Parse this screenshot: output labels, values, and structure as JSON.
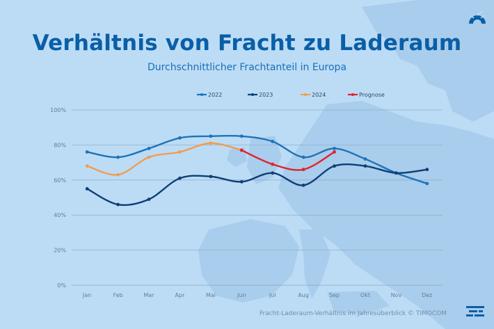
{
  "header": {
    "title": "Verhältnis von Fracht zu Laderaum",
    "subtitle": "Durchschnittlicher Frachtanteil in Europa"
  },
  "footer": {
    "source": "Fracht-Laderaum-Verhältnis im Jahresüberblick © TIMOCOM"
  },
  "logos": {
    "top_right": "gauge-icon",
    "bottom_right": "speed-lines-icon"
  },
  "colors": {
    "background": "#bcdcf6",
    "title": "#0a5fa6",
    "s2022": "#1e73b8",
    "s2023": "#0d3f75",
    "s2024": "#f29c4f",
    "prognose": "#e2222b"
  },
  "chart_data": {
    "type": "line",
    "title": "Verhältnis von Fracht zu Laderaum",
    "subtitle": "Durchschnittlicher Frachtanteil in Europa",
    "xlabel": "",
    "ylabel": "",
    "categories": [
      "Jan",
      "Feb",
      "Mar",
      "Apr",
      "Mai",
      "Jun",
      "Jul",
      "Aug",
      "Sep",
      "Okt",
      "Nov",
      "Dez"
    ],
    "y_ticks": [
      "0%",
      "20%",
      "40%",
      "60%",
      "80%",
      "100%"
    ],
    "ylim": [
      0,
      100
    ],
    "grid": true,
    "legend_position": "top",
    "series": [
      {
        "name": "2022",
        "color": "#1e73b8",
        "values": [
          76,
          73,
          78,
          84,
          85,
          85,
          82,
          73,
          78,
          72,
          64,
          58
        ]
      },
      {
        "name": "2023",
        "color": "#0d3f75",
        "values": [
          55,
          46,
          49,
          61,
          62,
          59,
          64,
          57,
          68,
          68,
          64,
          66
        ]
      },
      {
        "name": "2024",
        "color": "#f29c4f",
        "values": [
          68,
          63,
          73,
          76,
          81,
          77,
          null,
          null,
          null,
          null,
          null,
          null
        ]
      },
      {
        "name": "Prognose",
        "color": "#e2222b",
        "values": [
          null,
          null,
          null,
          null,
          null,
          77,
          69,
          66,
          76,
          null,
          null,
          null
        ]
      }
    ]
  }
}
